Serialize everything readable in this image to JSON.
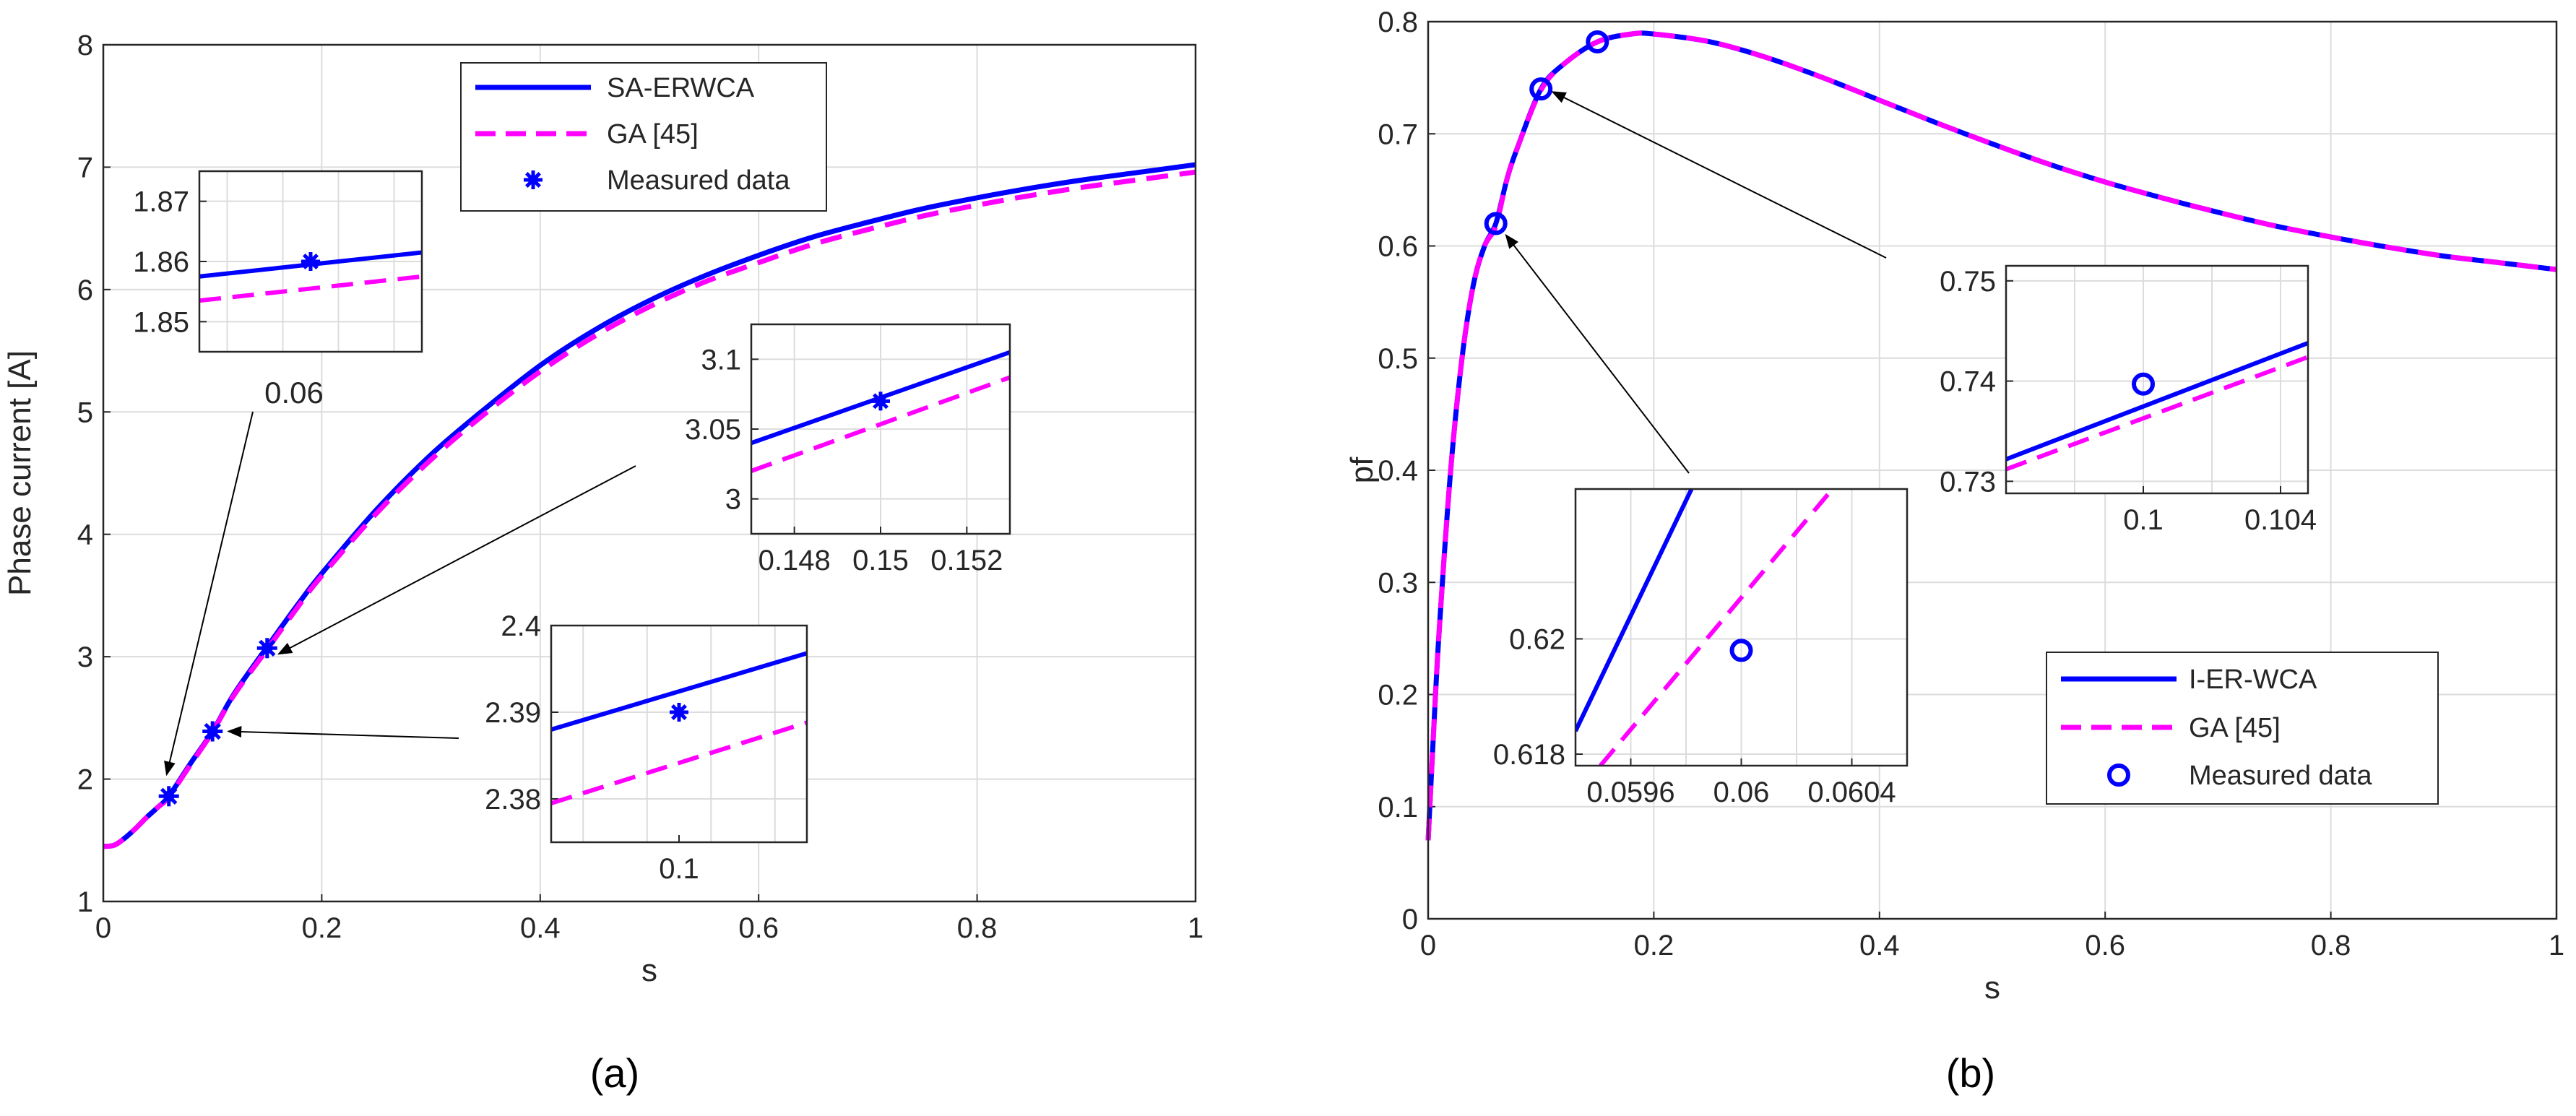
{
  "colors": {
    "solid": "#0000ff",
    "dashed": "#ff00ff",
    "grid": "#dcdcdc",
    "axis": "#262626",
    "arrow": "#000000"
  },
  "chart_data": [
    {
      "type": "line",
      "panel_label": "(a)",
      "xlabel": "s",
      "ylabel": "Phase current [A]",
      "xlim": [
        0,
        1
      ],
      "ylim": [
        1,
        8
      ],
      "xticks": [
        0,
        0.2,
        0.4,
        0.6,
        0.8,
        1
      ],
      "xtick_labels": [
        "0",
        "0.2",
        "0.4",
        "0.6",
        "0.8",
        "1"
      ],
      "yticks": [
        1,
        2,
        3,
        4,
        5,
        6,
        7,
        8
      ],
      "ytick_labels": [
        "1",
        "2",
        "3",
        "4",
        "5",
        "6",
        "7",
        "8"
      ],
      "grid": true,
      "legend_position": "top-center",
      "legend": [
        "SA-ERWCA",
        "GA [45]",
        "Measured data"
      ],
      "x": [
        0,
        0.01,
        0.02,
        0.03,
        0.04,
        0.05,
        0.06,
        0.08,
        0.1,
        0.12,
        0.15,
        0.18,
        0.2,
        0.25,
        0.3,
        0.35,
        0.4,
        0.45,
        0.5,
        0.55,
        0.6,
        0.65,
        0.7,
        0.75,
        0.8,
        0.85,
        0.9,
        0.95,
        1.0
      ],
      "series": [
        {
          "name": "SA-ERWCA",
          "style": "solid",
          "values": [
            1.45,
            1.46,
            1.52,
            1.6,
            1.69,
            1.77,
            1.86,
            2.13,
            2.39,
            2.7,
            3.08,
            3.45,
            3.68,
            4.2,
            4.65,
            5.03,
            5.38,
            5.67,
            5.91,
            6.11,
            6.28,
            6.43,
            6.55,
            6.66,
            6.75,
            6.83,
            6.9,
            6.96,
            7.02
          ]
        },
        {
          "name": "GA [45]",
          "style": "dashed",
          "values": [
            1.45,
            1.46,
            1.52,
            1.6,
            1.69,
            1.77,
            1.855,
            2.12,
            2.385,
            2.69,
            3.06,
            3.43,
            3.66,
            4.17,
            4.61,
            4.99,
            5.33,
            5.62,
            5.86,
            6.06,
            6.22,
            6.37,
            6.49,
            6.6,
            6.69,
            6.77,
            6.84,
            6.9,
            6.96
          ]
        }
      ],
      "measured": {
        "name": "Measured data",
        "marker": "asterisk",
        "x": [
          0.06,
          0.1,
          0.15
        ],
        "y": [
          1.86,
          2.39,
          3.07
        ]
      },
      "insets": [
        {
          "id": "a-inset-006",
          "annotation": "0.06",
          "xlim": [
            0.058,
            0.062
          ],
          "ylim": [
            1.845,
            1.875
          ],
          "xticks": [],
          "xtick_labels": [],
          "yticks": [
            1.85,
            1.86,
            1.87
          ],
          "ytick_labels": [
            "1.85",
            "1.86",
            "1.87"
          ],
          "x_grid": [
            0.0585,
            0.0595,
            0.0605,
            0.0615
          ],
          "series": [
            {
              "name": "SA-ERWCA",
              "style": "solid",
              "x": [
                0.058,
                0.062
              ],
              "y": [
                1.8575,
                1.8615
              ]
            },
            {
              "name": "GA [45]",
              "style": "dashed",
              "x": [
                0.058,
                0.062
              ],
              "y": [
                1.8535,
                1.8575
              ]
            }
          ],
          "measured": {
            "x": [
              0.06
            ],
            "y": [
              1.86
            ]
          },
          "arrow_target": {
            "x": 0.06,
            "y": 1.86
          }
        },
        {
          "id": "a-inset-015",
          "xlim": [
            0.147,
            0.153
          ],
          "ylim": [
            2.975,
            3.125
          ],
          "xticks": [
            0.148,
            0.15,
            0.152
          ],
          "xtick_labels": [
            "0.148",
            "0.15",
            "0.152"
          ],
          "yticks": [
            3,
            3.05,
            3.1
          ],
          "ytick_labels": [
            "3",
            "3.05",
            "3.1"
          ],
          "x_grid": [
            0.148,
            0.15,
            0.152
          ],
          "series": [
            {
              "name": "SA-ERWCA",
              "style": "solid",
              "x": [
                0.147,
                0.153
              ],
              "y": [
                3.04,
                3.105
              ]
            },
            {
              "name": "GA [45]",
              "style": "dashed",
              "x": [
                0.147,
                0.153
              ],
              "y": [
                3.02,
                3.087
              ]
            }
          ],
          "measured": {
            "x": [
              0.15
            ],
            "y": [
              3.07
            ]
          },
          "arrow_target": {
            "x": 0.15,
            "y": 3.07
          }
        },
        {
          "id": "a-inset-01",
          "xlim": [
            0.098,
            0.102
          ],
          "ylim": [
            2.375,
            2.4
          ],
          "xticks": [
            0.1
          ],
          "xtick_labels": [
            "0.1"
          ],
          "yticks": [
            2.38,
            2.39,
            2.4
          ],
          "ytick_labels": [
            "2.38",
            "2.39",
            "2.4"
          ],
          "x_grid": [
            0.0985,
            0.0995,
            0.1005,
            0.1015
          ],
          "series": [
            {
              "name": "SA-ERWCA",
              "style": "solid",
              "x": [
                0.098,
                0.102
              ],
              "y": [
                2.388,
                2.3968
              ]
            },
            {
              "name": "GA [45]",
              "style": "dashed",
              "x": [
                0.098,
                0.102
              ],
              "y": [
                2.3795,
                2.3888
              ]
            }
          ],
          "measured": {
            "x": [
              0.1
            ],
            "y": [
              2.39
            ]
          },
          "arrow_target": {
            "x": 0.1,
            "y": 2.39
          }
        }
      ]
    },
    {
      "type": "line",
      "panel_label": "(b)",
      "xlabel": "s",
      "ylabel": "pf",
      "xlim": [
        0,
        1
      ],
      "ylim": [
        0,
        0.8
      ],
      "xticks": [
        0,
        0.2,
        0.4,
        0.6,
        0.8,
        1
      ],
      "xtick_labels": [
        "0",
        "0.2",
        "0.4",
        "0.6",
        "0.8",
        "1"
      ],
      "yticks": [
        0,
        0.1,
        0.2,
        0.3,
        0.4,
        0.5,
        0.6,
        0.7,
        0.8
      ],
      "ytick_labels": [
        "0",
        "0.1",
        "0.2",
        "0.3",
        "0.4",
        "0.5",
        "0.6",
        "0.7",
        "0.8"
      ],
      "grid": true,
      "legend_position": "bottom-right",
      "legend": [
        "I-ER-WCA",
        "GA [45]",
        "Measured data"
      ],
      "x": [
        0.0,
        0.005,
        0.01,
        0.02,
        0.03,
        0.04,
        0.05,
        0.06,
        0.07,
        0.08,
        0.1,
        0.12,
        0.15,
        0.18,
        0.2,
        0.25,
        0.3,
        0.35,
        0.4,
        0.45,
        0.5,
        0.55,
        0.6,
        0.65,
        0.7,
        0.75,
        0.8,
        0.85,
        0.9,
        0.95,
        1.0
      ],
      "series": [
        {
          "name": "I-ER-WCA",
          "style": "solid",
          "values": [
            0.07,
            0.17,
            0.26,
            0.4,
            0.5,
            0.565,
            0.6,
            0.62,
            0.66,
            0.69,
            0.74,
            0.762,
            0.782,
            0.789,
            0.789,
            0.782,
            0.768,
            0.75,
            0.73,
            0.71,
            0.691,
            0.673,
            0.657,
            0.643,
            0.63,
            0.618,
            0.608,
            0.599,
            0.591,
            0.585,
            0.579
          ]
        },
        {
          "name": "GA [45]",
          "style": "dashed",
          "values": [
            0.07,
            0.17,
            0.26,
            0.4,
            0.5,
            0.565,
            0.6,
            0.618,
            0.66,
            0.69,
            0.739,
            0.762,
            0.782,
            0.789,
            0.789,
            0.782,
            0.768,
            0.75,
            0.73,
            0.71,
            0.691,
            0.673,
            0.657,
            0.643,
            0.63,
            0.618,
            0.608,
            0.599,
            0.591,
            0.585,
            0.579
          ]
        }
      ],
      "measured": {
        "name": "Measured data",
        "marker": "circle",
        "x": [
          0.06,
          0.1,
          0.15
        ],
        "y": [
          0.62,
          0.74,
          0.782
        ]
      },
      "insets": [
        {
          "id": "b-inset-006",
          "xlim": [
            0.0594,
            0.0606
          ],
          "ylim": [
            0.6178,
            0.6226
          ],
          "xticks": [
            0.0596,
            0.06,
            0.0604
          ],
          "xtick_labels": [
            "0.0596",
            "0.06",
            "0.0604"
          ],
          "yticks": [
            0.618,
            0.62
          ],
          "ytick_labels": [
            "0.618",
            "0.62"
          ],
          "x_grid": [
            0.0596,
            0.0598,
            0.06,
            0.0602,
            0.0604
          ],
          "series": [
            {
              "name": "I-ER-WCA",
              "style": "solid",
              "x": [
                0.0594,
                0.05982
              ],
              "y": [
                0.6184,
                0.6226
              ]
            },
            {
              "name": "GA [45]",
              "style": "dashed",
              "x": [
                0.05949,
                0.06033
              ],
              "y": [
                0.6178,
                0.6226
              ]
            }
          ],
          "measured": {
            "x": [
              0.06
            ],
            "y": [
              0.6198
            ]
          },
          "arrow_target": {
            "x": 0.06,
            "y": 0.62
          }
        },
        {
          "id": "b-inset-01",
          "xlim": [
            0.096,
            0.1048
          ],
          "ylim": [
            0.7288,
            0.7515
          ],
          "xticks": [
            0.1,
            0.104
          ],
          "xtick_labels": [
            "0.1",
            "0.104"
          ],
          "yticks": [
            0.73,
            0.74,
            0.75
          ],
          "ytick_labels": [
            "0.73",
            "0.74",
            "0.75"
          ],
          "x_grid": [
            0.098,
            0.1,
            0.102,
            0.104
          ],
          "series": [
            {
              "name": "I-ER-WCA",
              "style": "solid",
              "x": [
                0.096,
                0.1048
              ],
              "y": [
                0.7322,
                0.7438
              ]
            },
            {
              "name": "GA [45]",
              "style": "dashed",
              "x": [
                0.096,
                0.1048
              ],
              "y": [
                0.7312,
                0.7424
              ]
            }
          ],
          "measured": {
            "x": [
              0.1
            ],
            "y": [
              0.7397
            ]
          },
          "arrow_target": {
            "x": 0.1,
            "y": 0.74
          }
        }
      ]
    }
  ]
}
